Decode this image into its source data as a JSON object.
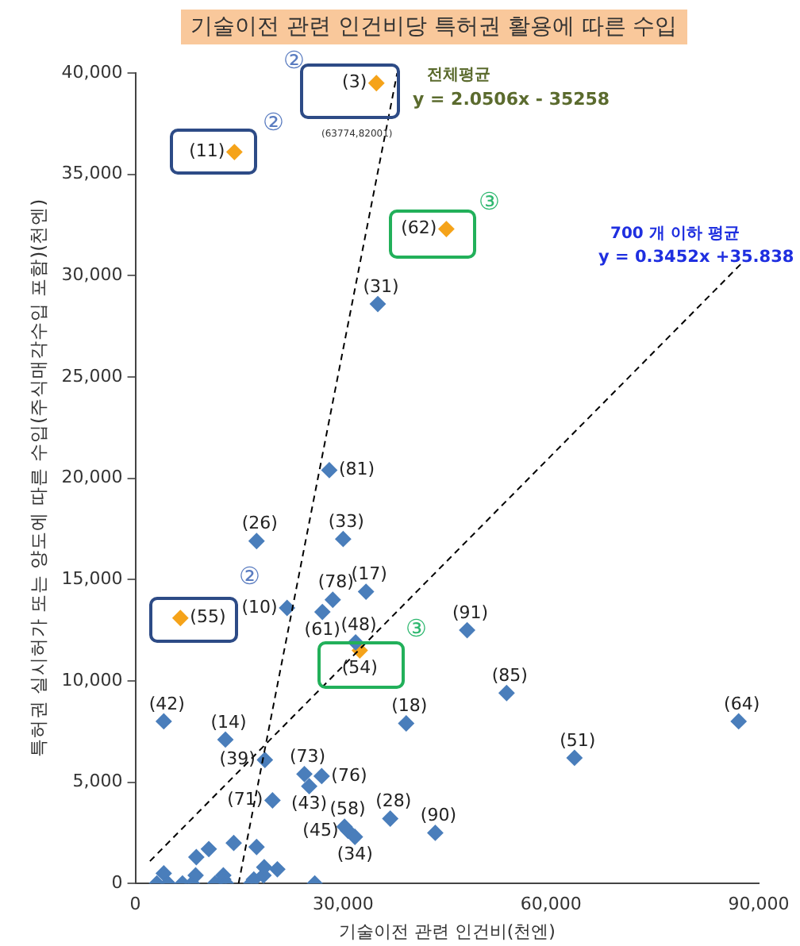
{
  "chart_data": {
    "type": "scatter",
    "title": "기술이전 관련 인건비당 특허권 활용에 따른 수입",
    "xlabel": "기술이전 관련 인건비(천엔)",
    "ylabel": "특허권 실시허가 또는 양도에 따른 수입(주식매각수입 포함)(천엔)",
    "xlim": [
      0,
      90000
    ],
    "xticks": [
      0,
      {
        "value": 30000,
        "label": "30,000"
      },
      {
        "value": 60000,
        "label": "60,000"
      },
      {
        "value": 90000,
        "label": "90,000"
      }
    ],
    "ylim": [
      0,
      40000
    ],
    "yticks": [
      0,
      {
        "value": 5000,
        "label": "5,000"
      },
      {
        "value": 10000,
        "label": "10,000"
      },
      {
        "value": 15000,
        "label": "15,000"
      },
      {
        "value": 20000,
        "label": "20,000"
      },
      {
        "value": 25000,
        "label": "25,000"
      },
      {
        "value": 30000,
        "label": "30,000"
      },
      {
        "value": 35000,
        "label": "35,000"
      },
      {
        "value": 40000,
        "label": "40,000"
      }
    ],
    "grid": false,
    "legend": false,
    "marker": "diamond",
    "series": [
      {
        "type": "line",
        "color": "#000000",
        "line_style": "dashed",
        "marker": "none",
        "x": [
          14900,
          37800
        ],
        "values": [
          0,
          40000
        ]
      },
      {
        "type": "line",
        "color": "#000000",
        "line_style": "dashed",
        "marker": "none",
        "x": [
          2100,
          87500
        ],
        "values": [
          1100,
          30600
        ]
      },
      {
        "color": "#4a7ebb",
        "x": [
          35000,
          28000,
          17500,
          30000,
          21900,
          28500,
          27000,
          33300,
          31800,
          47900,
          53600,
          87100,
          4100,
          39100,
          13000,
          63400,
          18700,
          24400,
          26900,
          25100,
          19800,
          30200,
          30700,
          31700,
          36800,
          43300,
          3100,
          4100,
          4700,
          6800,
          8200,
          8700,
          8800,
          10600,
          11500,
          12700,
          12700,
          13100,
          14200,
          16700,
          17500,
          17100,
          18500,
          18600,
          20500,
          25900
        ],
        "values": [
          28600,
          20400,
          16900,
          17000,
          13600,
          14000,
          13400,
          14400,
          11900,
          12500,
          9400,
          8000,
          8000,
          7900,
          7100,
          6200,
          6100,
          5400,
          5300,
          4800,
          4100,
          2800,
          2600,
          2300,
          3200,
          2500,
          0,
          500,
          0,
          0,
          0,
          400,
          1300,
          1700,
          0,
          400,
          200,
          0,
          2000,
          0,
          1800,
          200,
          400,
          800,
          700,
          0
        ]
      },
      {
        "color": "#f5a31a",
        "x": [
          34800,
          14300,
          44900,
          6500,
          32400
        ],
        "values": [
          39500,
          36100,
          32300,
          13100,
          11500
        ]
      }
    ],
    "annotations": [
      {
        "text": "(3)",
        "x": 34800,
        "y": 39500
      },
      {
        "text": "(11)",
        "x": 14300,
        "y": 36100
      },
      {
        "text": "(62)",
        "x": 44900,
        "y": 32300
      },
      {
        "text": "(55)",
        "x": 6500,
        "y": 13100
      },
      {
        "text": "(54)",
        "x": 32400,
        "y": 11500
      },
      {
        "text": "(31)",
        "x": 35000,
        "y": 28600
      },
      {
        "text": "(81)",
        "x": 28000,
        "y": 20400
      },
      {
        "text": "(26)",
        "x": 17500,
        "y": 16900
      },
      {
        "text": "(33)",
        "x": 30000,
        "y": 17000
      },
      {
        "text": "(10)",
        "x": 21900,
        "y": 13600
      },
      {
        "text": "(78)",
        "x": 28500,
        "y": 14000
      },
      {
        "text": "(61)",
        "x": 27000,
        "y": 13400
      },
      {
        "text": "(17)",
        "x": 33300,
        "y": 14400
      },
      {
        "text": "(48)",
        "x": 31800,
        "y": 11900
      },
      {
        "text": "(91)",
        "x": 47900,
        "y": 12500
      },
      {
        "text": "(85)",
        "x": 53600,
        "y": 9400
      },
      {
        "text": "(64)",
        "x": 87100,
        "y": 8000
      },
      {
        "text": "(42)",
        "x": 4100,
        "y": 8000
      },
      {
        "text": "(18)",
        "x": 39100,
        "y": 7900
      },
      {
        "text": "(14)",
        "x": 13000,
        "y": 7100
      },
      {
        "text": "(51)",
        "x": 63400,
        "y": 6200
      },
      {
        "text": "(39)",
        "x": 18700,
        "y": 6100
      },
      {
        "text": "(73)",
        "x": 24400,
        "y": 5400
      },
      {
        "text": "(76)",
        "x": 26900,
        "y": 5300
      },
      {
        "text": "(43)",
        "x": 25100,
        "y": 4800
      },
      {
        "text": "(71)",
        "x": 19800,
        "y": 4100
      },
      {
        "text": "(58)",
        "x": 30200,
        "y": 2800
      },
      {
        "text": "(45)",
        "x": 30700,
        "y": 2600
      },
      {
        "text": "(34)",
        "x": 31700,
        "y": 2300
      },
      {
        "text": "(28)",
        "x": 36800,
        "y": 3200
      },
      {
        "text": "(90)",
        "x": 43300,
        "y": 2500
      },
      "전체평균",
      "y = 2.0506x - 35258",
      "700 개 이하 평균",
      "y = 0.3452x +35.838",
      "②",
      "②",
      "③",
      "②",
      "③",
      "(63774,82001)"
    ]
  }
}
